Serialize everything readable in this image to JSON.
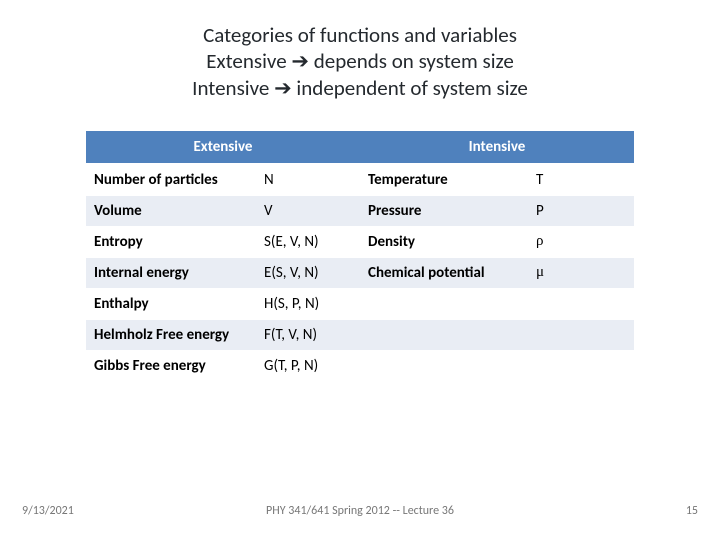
{
  "title": {
    "line1": "Categories  of  functions  and variables",
    "line2": "Extensive ➔ depends on system size",
    "line3": "Intensive ➔ independent of system size"
  },
  "table": {
    "header_left": "Extensive",
    "header_right": "Intensive",
    "rows": [
      {
        "ext_name": "Number of particles",
        "ext_sym": "N",
        "int_name": "Temperature",
        "int_sym": "T"
      },
      {
        "ext_name": "Volume",
        "ext_sym": "V",
        "int_name": "Pressure",
        "int_sym": "P"
      },
      {
        "ext_name": "Entropy",
        "ext_sym": "S(E, V, N)",
        "int_name": "Density",
        "int_sym": "ρ"
      },
      {
        "ext_name": "Internal energy",
        "ext_sym": "E(S, V, N)",
        "int_name": "Chemical potential",
        "int_sym": "μ"
      },
      {
        "ext_name": "Enthalpy",
        "ext_sym": "H(S, P, N)",
        "int_name": "",
        "int_sym": ""
      },
      {
        "ext_name": "Helmholz Free energy",
        "ext_sym": "F(T, V, N)",
        "int_name": "",
        "int_sym": ""
      },
      {
        "ext_name": "Gibbs Free energy",
        "ext_sym": "G(T, P, N)",
        "int_name": "",
        "int_sym": ""
      }
    ],
    "header_bg": "#4f81bd",
    "header_fg": "#ffffff",
    "row_alt_bg": "#e9edf4",
    "font_size": 15
  },
  "footer": {
    "date": "9/13/2021",
    "center": "PHY 341/641 Spring 2012 -- Lecture 36",
    "page": "15"
  }
}
